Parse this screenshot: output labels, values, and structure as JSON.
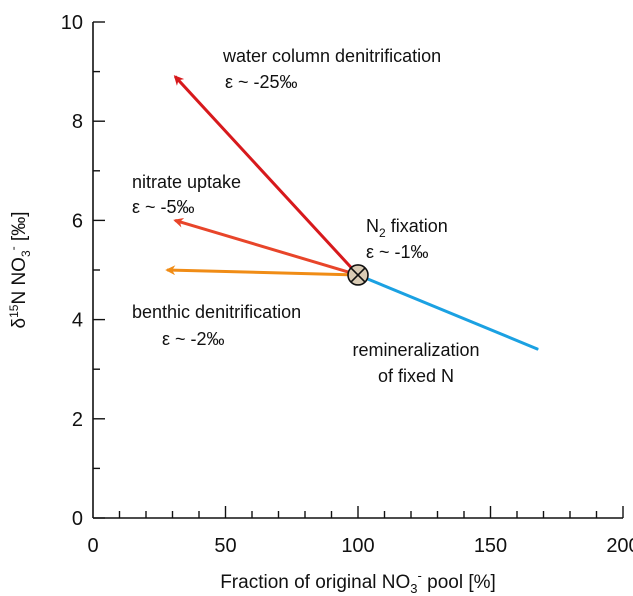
{
  "chart_data": {
    "type": "line",
    "xlabel": {
      "main": "Fraction of original NO",
      "sub": "3",
      "sup": "-",
      "tail": " pool [%]"
    },
    "ylabel": {
      "delta": "δ",
      "sup15": "15",
      "n": "N NO",
      "sub": "3",
      "sup": "-",
      "tail": " [‰]"
    },
    "xlim": [
      0,
      200
    ],
    "ylim": [
      0,
      10
    ],
    "x_ticks": [
      "0",
      "50",
      "100",
      "150",
      "200"
    ],
    "y_ticks": [
      "0",
      "2",
      "4",
      "6",
      "8",
      "10"
    ],
    "grid": false,
    "origin": {
      "x": 100,
      "y": 4.9,
      "marker": "circle-x"
    },
    "series": [
      {
        "name": "water column denitrification",
        "epsilon": "ε  ~ -25‰",
        "color": "#d7191c",
        "x": [
          100,
          31
        ],
        "y": [
          4.9,
          8.9
        ]
      },
      {
        "name": "nitrate uptake",
        "epsilon": "ε  ~ -5‰",
        "color": "#e8452a",
        "x": [
          100,
          31
        ],
        "y": [
          4.9,
          6.0
        ]
      },
      {
        "name": "benthic denitrification",
        "epsilon": "ε  ~ -2‰",
        "color": "#f08c16",
        "x": [
          100,
          28
        ],
        "y": [
          4.9,
          5.0
        ]
      },
      {
        "name": "remineralization of fixed N",
        "color": "#1ba1e2",
        "x": [
          100,
          168
        ],
        "y": [
          4.9,
          3.4
        ]
      }
    ],
    "annotations": {
      "water_column": {
        "line1": "water column denitrification",
        "line2": "ε  ~ -25‰"
      },
      "nitrate_uptake": {
        "line1": "nitrate uptake",
        "line2": "ε  ~ -5‰"
      },
      "benthic": {
        "line1": "benthic denitrification",
        "line2": "ε  ~ -2‰"
      },
      "n2_fixation": {
        "n": "N",
        "sub": "2",
        "tail": " fixation",
        "line2": "ε  ~ -1‰"
      },
      "remineralization": {
        "line1": "remineralization",
        "line2": "of fixed N"
      }
    }
  }
}
